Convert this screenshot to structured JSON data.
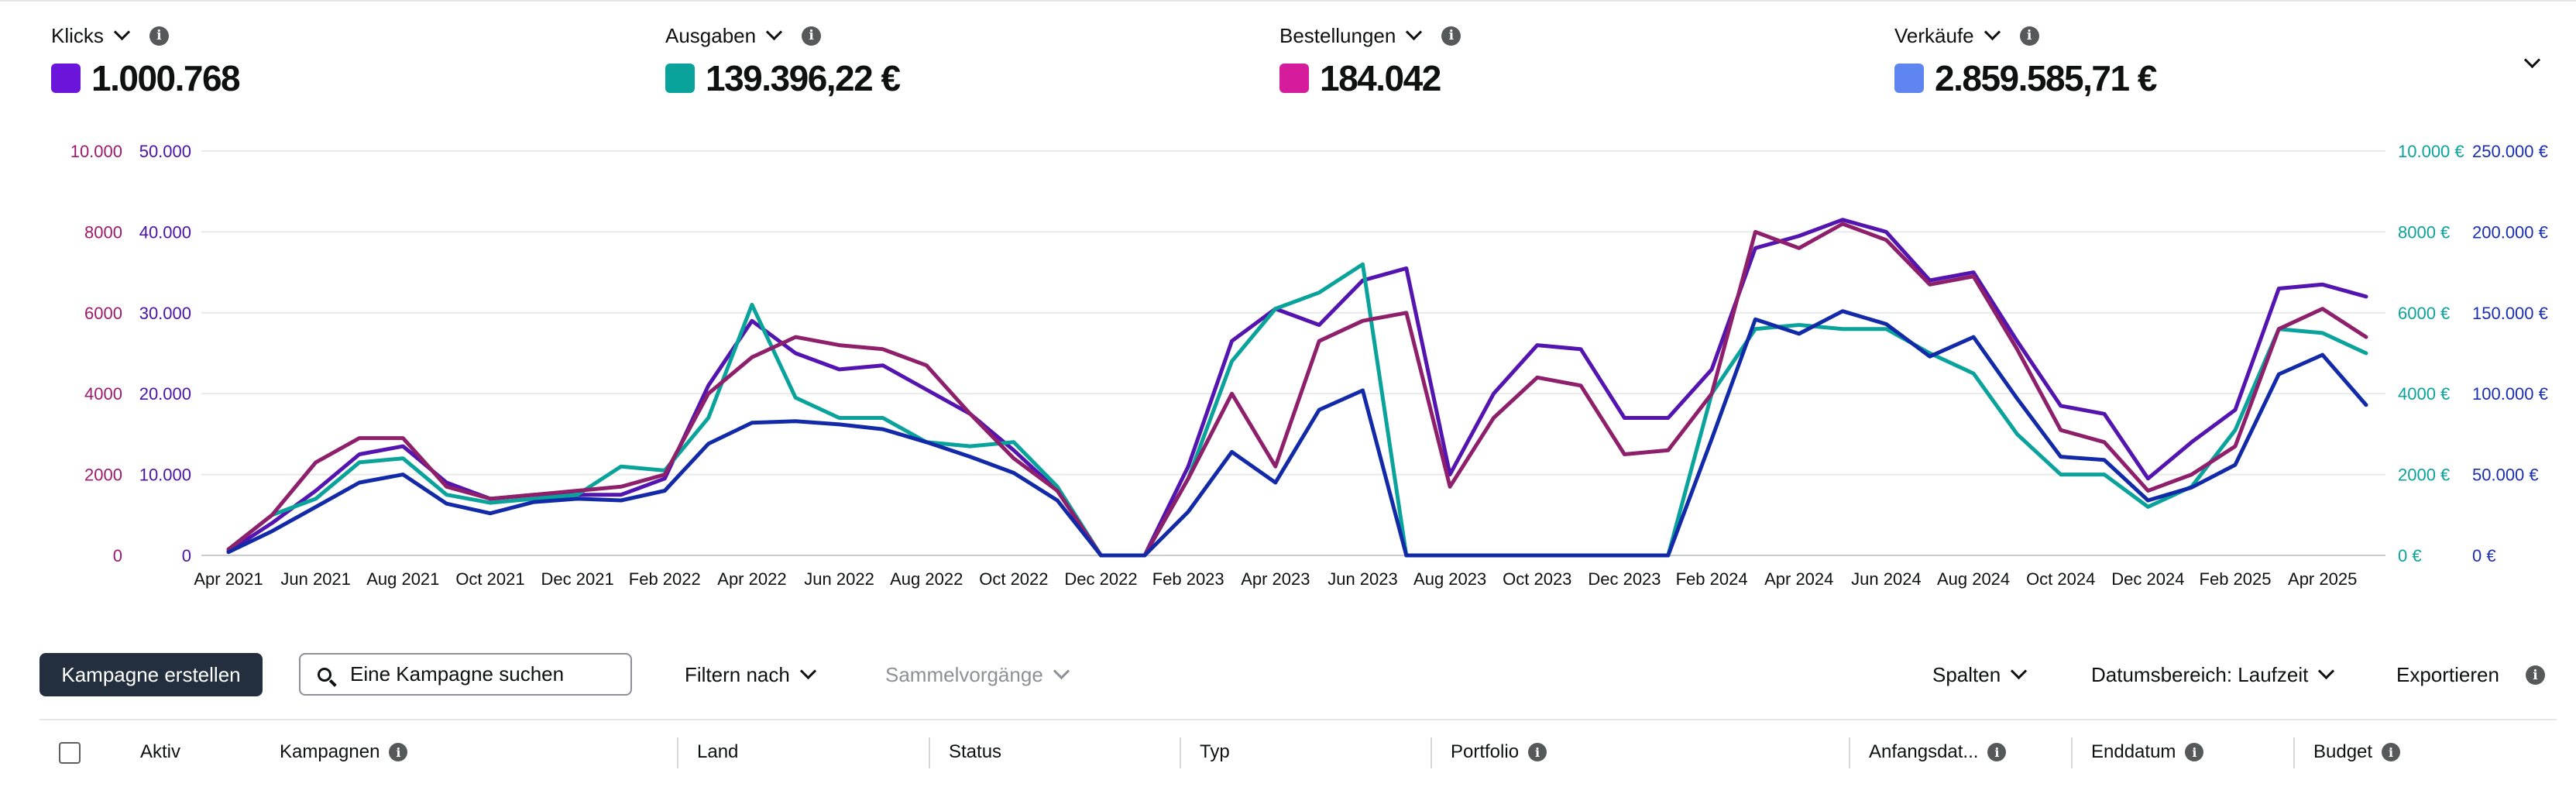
{
  "metrics": [
    {
      "label": "Klicks",
      "value": "1.000.768",
      "color": "#6a15d9"
    },
    {
      "label": "Ausgaben",
      "value": "139.396,22 €",
      "color": "#0aa39c"
    },
    {
      "label": "Bestellungen",
      "value": "184.042",
      "color": "#d41c9d"
    },
    {
      "label": "Verkäufe",
      "value": "2.859.585,71 €",
      "color": "#5f86f0"
    }
  ],
  "chart_data": {
    "type": "line",
    "x": [
      "Apr 2021",
      "May 2021",
      "Jun 2021",
      "Jul 2021",
      "Aug 2021",
      "Sep 2021",
      "Oct 2021",
      "Nov 2021",
      "Dec 2021",
      "Jan 2022",
      "Feb 2022",
      "Mar 2022",
      "Apr 2022",
      "May 2022",
      "Jun 2022",
      "Jul 2022",
      "Aug 2022",
      "Sep 2022",
      "Oct 2022",
      "Nov 2022",
      "Dec 2022",
      "Jan 2023",
      "Feb 2023",
      "Mar 2023",
      "Apr 2023",
      "May 2023",
      "Jun 2023",
      "Jul 2023",
      "Aug 2023",
      "Sep 2023",
      "Oct 2023",
      "Nov 2023",
      "Dec 2023",
      "Jan 2024",
      "Feb 2024",
      "Mar 2024",
      "Apr 2024",
      "May 2024",
      "Jun 2024",
      "Jul 2024",
      "Aug 2024",
      "Sep 2024",
      "Oct 2024",
      "Nov 2024",
      "Dec 2024",
      "Jan 2025",
      "Feb 2025",
      "Mar 2025",
      "Apr 2025",
      "May 2025"
    ],
    "x_tick_labels": [
      "Apr 2021",
      "Jun 2021",
      "Aug 2021",
      "Oct 2021",
      "Dec 2021",
      "Feb 2022",
      "Apr 2022",
      "Jun 2022",
      "Aug 2022",
      "Oct 2022",
      "Dec 2022",
      "Feb 2023",
      "Apr 2023",
      "Jun 2023",
      "Aug 2023",
      "Oct 2023",
      "Dec 2023",
      "Feb 2024",
      "Apr 2024",
      "Jun 2024",
      "Aug 2024",
      "Oct 2024",
      "Dec 2024",
      "Feb 2025",
      "Apr 2025"
    ],
    "axes": {
      "bestellungen": {
        "ticks": [
          "0",
          "2000",
          "4000",
          "6000",
          "8000",
          "10.000"
        ],
        "max": 10000,
        "color": "#9c1a6e"
      },
      "klicks": {
        "ticks": [
          "0",
          "10.000",
          "20.000",
          "30.000",
          "40.000",
          "50.000"
        ],
        "max": 50000,
        "color": "#4a13a8"
      },
      "ausgaben": {
        "ticks": [
          "0 €",
          "2000 €",
          "4000 €",
          "6000 €",
          "8000 €",
          "10.000 €"
        ],
        "max": 10000,
        "color": "#0aa39c"
      },
      "verkaeufe": {
        "ticks": [
          "0 €",
          "50.000 €",
          "100.000 €",
          "150.000 €",
          "200.000 €",
          "250.000 €"
        ],
        "max": 250000,
        "color": "#1b2eb0"
      }
    },
    "grid": true,
    "series": [
      {
        "name": "Klicks",
        "axis": "klicks",
        "color": "#5314b0",
        "values": [
          500,
          4000,
          8000,
          12500,
          13500,
          9000,
          7000,
          7500,
          7500,
          7500,
          9500,
          21000,
          29000,
          25000,
          23000,
          23500,
          20500,
          17500,
          13000,
          8000,
          0,
          0,
          11000,
          26500,
          30500,
          28500,
          34000,
          35500,
          10000,
          20000,
          26000,
          25500,
          17000,
          17000,
          23000,
          38000,
          39500,
          41500,
          40000,
          34000,
          35000,
          26500,
          18500,
          17500,
          9500,
          14000,
          18000,
          33000,
          33500,
          32000
        ]
      },
      {
        "name": "Ausgaben",
        "axis": "ausgaben",
        "color": "#0aa39c",
        "values": [
          150,
          1000,
          1400,
          2300,
          2400,
          1500,
          1300,
          1400,
          1500,
          2200,
          2100,
          3400,
          6200,
          3900,
          3400,
          3400,
          2800,
          2700,
          2800,
          1700,
          0,
          0,
          1900,
          4800,
          6100,
          6500,
          7200,
          0,
          0,
          0,
          0,
          0,
          0,
          0,
          4000,
          5600,
          5700,
          5600,
          5600,
          5000,
          4500,
          3000,
          2000,
          2000,
          1200,
          1700,
          3100,
          5600,
          5500,
          5000
        ]
      },
      {
        "name": "Bestellungen",
        "axis": "bestellungen",
        "color": "#8e1f6b",
        "values": [
          150,
          1000,
          2300,
          2900,
          2900,
          1700,
          1400,
          1500,
          1600,
          1700,
          2000,
          4000,
          4900,
          5400,
          5200,
          5100,
          4700,
          3500,
          2400,
          1600,
          0,
          0,
          1900,
          4000,
          2200,
          5300,
          5800,
          6000,
          1700,
          3400,
          4400,
          4200,
          2500,
          2600,
          4000,
          8000,
          7600,
          8200,
          7800,
          6700,
          6900,
          5100,
          3100,
          2800,
          1600,
          2000,
          2700,
          5600,
          6100,
          5400
        ]
      },
      {
        "name": "Verkäufe",
        "axis": "verkaeufe",
        "color": "#132aa8",
        "values": [
          2000,
          15000,
          30000,
          45000,
          50000,
          32000,
          26000,
          33000,
          35000,
          34000,
          40000,
          69000,
          82000,
          83000,
          81000,
          78000,
          70000,
          61000,
          51000,
          34000,
          0,
          0,
          27000,
          64000,
          45000,
          90000,
          102000,
          0,
          0,
          0,
          0,
          0,
          0,
          0,
          72000,
          146000,
          137000,
          151000,
          143000,
          123000,
          135000,
          97000,
          61000,
          59000,
          34000,
          42000,
          56000,
          112000,
          124000,
          93000
        ]
      }
    ]
  },
  "toolbar": {
    "create_label": "Kampagne erstellen",
    "search_placeholder": "Eine Kampagne suchen",
    "filter_label": "Filtern nach",
    "bulk_label": "Sammelvorgänge",
    "columns_label": "Spalten",
    "date_range_label": "Datumsbereich: Laufzeit",
    "export_label": "Exportieren"
  },
  "table": {
    "columns": [
      "Aktiv",
      "Kampagnen",
      "Land",
      "Status",
      "Typ",
      "Portfolio",
      "Anfangsdat...",
      "Enddatum",
      "Budget"
    ]
  }
}
